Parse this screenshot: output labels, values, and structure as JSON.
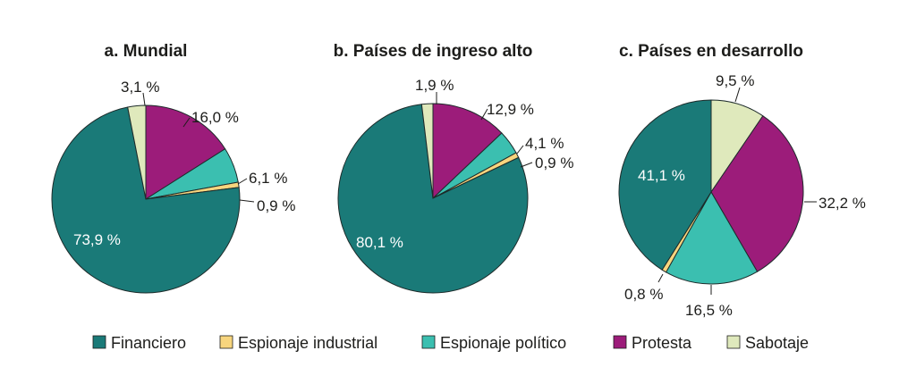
{
  "chart_data": [
    {
      "type": "pie",
      "title": "a. Mundial",
      "slices": [
        {
          "name": "Protesta",
          "value": 16.0,
          "label": "16,0 %"
        },
        {
          "name": "Espionaje político",
          "value": 6.1,
          "label": "6,1 %"
        },
        {
          "name": "Espionaje industrial",
          "value": 0.9,
          "label": "0,9 %"
        },
        {
          "name": "Financiero",
          "value": 73.9,
          "label": "73,9 %"
        },
        {
          "name": "Sabotaje",
          "value": 3.1,
          "label": "3,1 %"
        }
      ]
    },
    {
      "type": "pie",
      "title": "b. Países de ingreso alto",
      "slices": [
        {
          "name": "Protesta",
          "value": 12.9,
          "label": "12,9 %"
        },
        {
          "name": "Espionaje político",
          "value": 4.1,
          "label": "4,1 %"
        },
        {
          "name": "Espionaje industrial",
          "value": 0.9,
          "label": "0,9 %"
        },
        {
          "name": "Financiero",
          "value": 80.1,
          "label": "80,1 %"
        },
        {
          "name": "Sabotaje",
          "value": 1.9,
          "label": "1,9 %"
        }
      ]
    },
    {
      "type": "pie",
      "title": "c. Países en desarrollo",
      "slices": [
        {
          "name": "Sabotaje",
          "value": 9.5,
          "label": "9,5 %"
        },
        {
          "name": "Protesta",
          "value": 32.2,
          "label": "32,2 %"
        },
        {
          "name": "Espionaje político",
          "value": 16.5,
          "label": "16,5 %"
        },
        {
          "name": "Espionaje industrial",
          "value": 0.8,
          "label": "0,8 %"
        },
        {
          "name": "Financiero",
          "value": 41.1,
          "label": "41,1 %"
        }
      ]
    }
  ],
  "legend": [
    {
      "label": "Financiero",
      "color": "#1a7a78"
    },
    {
      "label": "Espionaje industrial",
      "color": "#f7d57e"
    },
    {
      "label": "Espionaje político",
      "color": "#3bbfb0"
    },
    {
      "label": "Protesta",
      "color": "#9c1c7a"
    },
    {
      "label": "Sabotaje",
      "color": "#dfe9bc"
    }
  ]
}
